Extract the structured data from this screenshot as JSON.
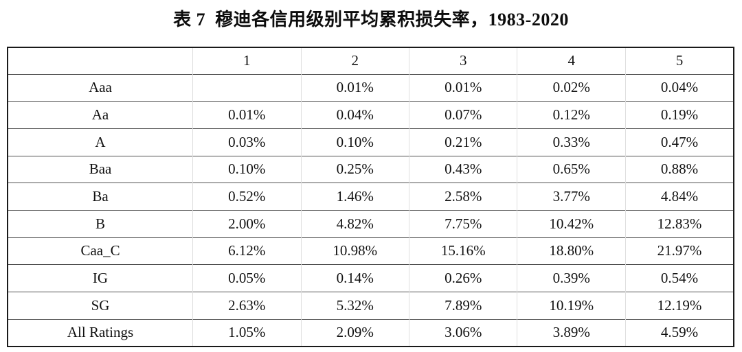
{
  "title": "表 7  穆迪各信用级别平均累积损失率，1983-2020",
  "table": {
    "header": [
      "",
      "1",
      "2",
      "3",
      "4",
      "5"
    ],
    "rows": [
      {
        "label": "Aaa",
        "values": [
          "",
          "0.01%",
          "0.01%",
          "0.02%",
          "0.04%"
        ]
      },
      {
        "label": "Aa",
        "values": [
          "0.01%",
          "0.04%",
          "0.07%",
          "0.12%",
          "0.19%"
        ]
      },
      {
        "label": "A",
        "values": [
          "0.03%",
          "0.10%",
          "0.21%",
          "0.33%",
          "0.47%"
        ]
      },
      {
        "label": "Baa",
        "values": [
          "0.10%",
          "0.25%",
          "0.43%",
          "0.65%",
          "0.88%"
        ]
      },
      {
        "label": "Ba",
        "values": [
          "0.52%",
          "1.46%",
          "2.58%",
          "3.77%",
          "4.84%"
        ]
      },
      {
        "label": "B",
        "values": [
          "2.00%",
          "4.82%",
          "7.75%",
          "10.42%",
          "12.83%"
        ]
      },
      {
        "label": "Caa_C",
        "values": [
          "6.12%",
          "10.98%",
          "15.16%",
          "18.80%",
          "21.97%"
        ]
      },
      {
        "label": "IG",
        "values": [
          "0.05%",
          "0.14%",
          "0.26%",
          "0.39%",
          "0.54%"
        ]
      },
      {
        "label": "SG",
        "values": [
          "2.63%",
          "5.32%",
          "7.89%",
          "10.19%",
          "12.19%"
        ]
      },
      {
        "label": "All Ratings",
        "values": [
          "1.05%",
          "2.09%",
          "3.06%",
          "3.89%",
          "4.59%"
        ]
      }
    ]
  },
  "colors": {
    "background": "#ffffff",
    "text": "#111111",
    "outer_border": "#1a1a1a",
    "row_separator": "#4d4d4d",
    "column_separator": "#dedede"
  },
  "chart_data": {
    "type": "table",
    "title": "表 7  穆迪各信用级别平均累积损失率，1983-2020",
    "columns": [
      "1",
      "2",
      "3",
      "4",
      "5"
    ],
    "row_labels": [
      "Aaa",
      "Aa",
      "A",
      "Baa",
      "Ba",
      "B",
      "Caa_C",
      "IG",
      "SG",
      "All Ratings"
    ],
    "values_percent": [
      [
        null,
        0.01,
        0.01,
        0.02,
        0.04
      ],
      [
        0.01,
        0.04,
        0.07,
        0.12,
        0.19
      ],
      [
        0.03,
        0.1,
        0.21,
        0.33,
        0.47
      ],
      [
        0.1,
        0.25,
        0.43,
        0.65,
        0.88
      ],
      [
        0.52,
        1.46,
        2.58,
        3.77,
        4.84
      ],
      [
        2.0,
        4.82,
        7.75,
        10.42,
        12.83
      ],
      [
        6.12,
        10.98,
        15.16,
        18.8,
        21.97
      ],
      [
        0.05,
        0.14,
        0.26,
        0.39,
        0.54
      ],
      [
        2.63,
        5.32,
        7.89,
        10.19,
        12.19
      ],
      [
        1.05,
        2.09,
        3.06,
        3.89,
        4.59
      ]
    ]
  }
}
